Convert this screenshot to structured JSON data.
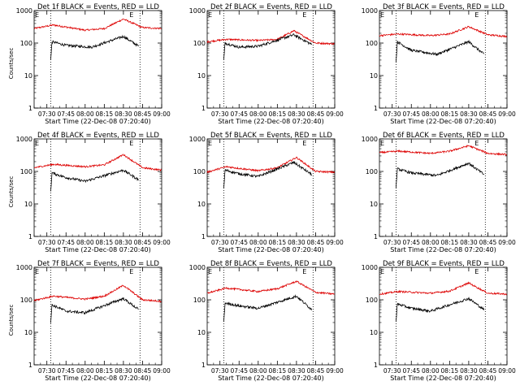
{
  "figure": {
    "layout": "3x3 grid of RHESSI detector lightcurves"
  },
  "shared": {
    "ylabel": "Counts/sec",
    "xlabel": "Start Time (22-Dec-08 07:20:40)",
    "xticks": [
      "07:30",
      "07:45",
      "08:00",
      "08:15",
      "08:30",
      "08:45",
      "09:00"
    ],
    "yticks": [
      "1",
      "10",
      "100",
      "1000"
    ],
    "corner_marks": [
      "E",
      "E"
    ],
    "black_color": "#000000",
    "red_color": "#dd0000"
  },
  "chart_data": [
    {
      "type": "line",
      "title": "Det 1f BLACK = Events, RED = LLD",
      "x_range_min": [
        0,
        100
      ],
      "ylim": [
        1,
        1000
      ],
      "y_scale": "log",
      "vlines_min": [
        13,
        83
      ],
      "data_start_min": 13,
      "data_end_min": 82,
      "series": [
        {
          "color": "red",
          "start_min": 0,
          "end_min": 100,
          "values_at": [
            [
              0,
              280
            ],
            [
              15,
              360
            ],
            [
              40,
              250
            ],
            [
              55,
              280
            ],
            [
              70,
              550
            ],
            [
              85,
              300
            ],
            [
              100,
              280
            ]
          ]
        },
        {
          "color": "black",
          "start_min": 13,
          "end_min": 82,
          "values_at": [
            [
              13,
              30
            ],
            [
              14,
              110
            ],
            [
              25,
              85
            ],
            [
              45,
              75
            ],
            [
              70,
              160
            ],
            [
              82,
              80
            ]
          ]
        }
      ]
    },
    {
      "type": "line",
      "title": "Det 2f BLACK = Events, RED = LLD",
      "x_range_min": [
        0,
        100
      ],
      "ylim": [
        1,
        1000
      ],
      "y_scale": "log",
      "vlines_min": [
        13,
        83
      ],
      "data_start_min": 13,
      "data_end_min": 82,
      "series": [
        {
          "color": "red",
          "start_min": 0,
          "end_min": 100,
          "values_at": [
            [
              0,
              110
            ],
            [
              15,
              130
            ],
            [
              40,
              120
            ],
            [
              55,
              130
            ],
            [
              68,
              240
            ],
            [
              85,
              100
            ],
            [
              100,
              95
            ]
          ]
        },
        {
          "color": "black",
          "start_min": 13,
          "end_min": 82,
          "values_at": [
            [
              13,
              30
            ],
            [
              14,
              100
            ],
            [
              25,
              75
            ],
            [
              40,
              80
            ],
            [
              68,
              180
            ],
            [
              82,
              90
            ]
          ]
        }
      ]
    },
    {
      "type": "line",
      "title": "Det 3f BLACK = Events, RED = LLD",
      "x_range_min": [
        0,
        100
      ],
      "ylim": [
        1,
        1000
      ],
      "y_scale": "log",
      "vlines_min": [
        13,
        83
      ],
      "data_start_min": 13,
      "data_end_min": 82,
      "series": [
        {
          "color": "red",
          "start_min": 0,
          "end_min": 100,
          "values_at": [
            [
              0,
              170
            ],
            [
              15,
              190
            ],
            [
              40,
              170
            ],
            [
              55,
              190
            ],
            [
              70,
              320
            ],
            [
              85,
              180
            ],
            [
              100,
              160
            ]
          ]
        },
        {
          "color": "black",
          "start_min": 13,
          "end_min": 82,
          "values_at": [
            [
              13,
              25
            ],
            [
              14,
              110
            ],
            [
              25,
              60
            ],
            [
              45,
              45
            ],
            [
              70,
              110
            ],
            [
              82,
              45
            ]
          ]
        }
      ]
    },
    {
      "type": "line",
      "title": "Det 4f BLACK = Events, RED = LLD",
      "x_range_min": [
        0,
        100
      ],
      "ylim": [
        1,
        1000
      ],
      "y_scale": "log",
      "vlines_min": [
        13,
        83
      ],
      "data_start_min": 13,
      "data_end_min": 82,
      "series": [
        {
          "color": "red",
          "start_min": 0,
          "end_min": 100,
          "values_at": [
            [
              0,
              130
            ],
            [
              15,
              165
            ],
            [
              40,
              140
            ],
            [
              55,
              160
            ],
            [
              70,
              330
            ],
            [
              85,
              130
            ],
            [
              100,
              110
            ]
          ]
        },
        {
          "color": "black",
          "start_min": 13,
          "end_min": 82,
          "values_at": [
            [
              13,
              25
            ],
            [
              14,
              90
            ],
            [
              25,
              65
            ],
            [
              40,
              50
            ],
            [
              70,
              110
            ],
            [
              82,
              55
            ]
          ]
        }
      ]
    },
    {
      "type": "line",
      "title": "Det 5f BLACK = Events, RED = LLD",
      "x_range_min": [
        0,
        100
      ],
      "ylim": [
        1,
        1000
      ],
      "y_scale": "log",
      "vlines_min": [
        13,
        83
      ],
      "data_start_min": 13,
      "data_end_min": 82,
      "series": [
        {
          "color": "red",
          "start_min": 0,
          "end_min": 100,
          "values_at": [
            [
              0,
              95
            ],
            [
              15,
              140
            ],
            [
              40,
              105
            ],
            [
              55,
              130
            ],
            [
              70,
              270
            ],
            [
              85,
              100
            ],
            [
              100,
              95
            ]
          ]
        },
        {
          "color": "black",
          "start_min": 13,
          "end_min": 82,
          "values_at": [
            [
              13,
              30
            ],
            [
              14,
              110
            ],
            [
              25,
              85
            ],
            [
              40,
              70
            ],
            [
              68,
              190
            ],
            [
              82,
              80
            ]
          ]
        }
      ]
    },
    {
      "type": "line",
      "title": "Det 6f BLACK = Events, RED = LLD",
      "x_range_min": [
        0,
        100
      ],
      "ylim": [
        1,
        1000
      ],
      "y_scale": "log",
      "vlines_min": [
        13,
        83
      ],
      "data_start_min": 13,
      "data_end_min": 82,
      "series": [
        {
          "color": "red",
          "start_min": 0,
          "end_min": 100,
          "values_at": [
            [
              0,
              380
            ],
            [
              15,
              420
            ],
            [
              40,
              360
            ],
            [
              55,
              420
            ],
            [
              70,
              620
            ],
            [
              85,
              360
            ],
            [
              100,
              330
            ]
          ]
        },
        {
          "color": "black",
          "start_min": 13,
          "end_min": 82,
          "values_at": [
            [
              13,
              30
            ],
            [
              14,
              120
            ],
            [
              25,
              90
            ],
            [
              45,
              75
            ],
            [
              70,
              180
            ],
            [
              82,
              80
            ]
          ]
        }
      ]
    },
    {
      "type": "line",
      "title": "Det 7f BLACK = Events, RED = LLD",
      "x_range_min": [
        0,
        100
      ],
      "ylim": [
        1,
        1000
      ],
      "y_scale": "log",
      "vlines_min": [
        13,
        83
      ],
      "data_start_min": 13,
      "data_end_min": 82,
      "series": [
        {
          "color": "red",
          "start_min": 0,
          "end_min": 100,
          "values_at": [
            [
              0,
              95
            ],
            [
              15,
              130
            ],
            [
              40,
              105
            ],
            [
              55,
              130
            ],
            [
              70,
              280
            ],
            [
              85,
              100
            ],
            [
              100,
              90
            ]
          ]
        },
        {
          "color": "black",
          "start_min": 13,
          "end_min": 82,
          "values_at": [
            [
              13,
              20
            ],
            [
              14,
              70
            ],
            [
              25,
              45
            ],
            [
              40,
              40
            ],
            [
              70,
              110
            ],
            [
              82,
              50
            ]
          ]
        }
      ]
    },
    {
      "type": "line",
      "title": "Det 8f BLACK = Events, RED = LLD",
      "x_range_min": [
        0,
        100
      ],
      "ylim": [
        1,
        1000
      ],
      "y_scale": "log",
      "vlines_min": [
        13,
        83
      ],
      "data_start_min": 13,
      "data_end_min": 82,
      "series": [
        {
          "color": "red",
          "start_min": 0,
          "end_min": 100,
          "values_at": [
            [
              0,
              160
            ],
            [
              15,
              230
            ],
            [
              40,
              180
            ],
            [
              55,
              220
            ],
            [
              70,
              370
            ],
            [
              85,
              170
            ],
            [
              100,
              150
            ]
          ]
        },
        {
          "color": "black",
          "start_min": 13,
          "end_min": 82,
          "values_at": [
            [
              13,
              20
            ],
            [
              14,
              80
            ],
            [
              25,
              65
            ],
            [
              40,
              55
            ],
            [
              70,
              130
            ],
            [
              82,
              50
            ]
          ]
        }
      ]
    },
    {
      "type": "line",
      "title": "Det 9f BLACK = Events, RED = LLD",
      "x_range_min": [
        0,
        100
      ],
      "ylim": [
        1,
        1000
      ],
      "y_scale": "log",
      "vlines_min": [
        13,
        83
      ],
      "data_start_min": 13,
      "data_end_min": 82,
      "series": [
        {
          "color": "red",
          "start_min": 0,
          "end_min": 100,
          "values_at": [
            [
              0,
              150
            ],
            [
              15,
              180
            ],
            [
              40,
              160
            ],
            [
              55,
              185
            ],
            [
              70,
              330
            ],
            [
              85,
              160
            ],
            [
              100,
              150
            ]
          ]
        },
        {
          "color": "black",
          "start_min": 13,
          "end_min": 82,
          "values_at": [
            [
              13,
              20
            ],
            [
              14,
              75
            ],
            [
              25,
              55
            ],
            [
              40,
              45
            ],
            [
              70,
              110
            ],
            [
              82,
              50
            ]
          ]
        }
      ]
    }
  ]
}
